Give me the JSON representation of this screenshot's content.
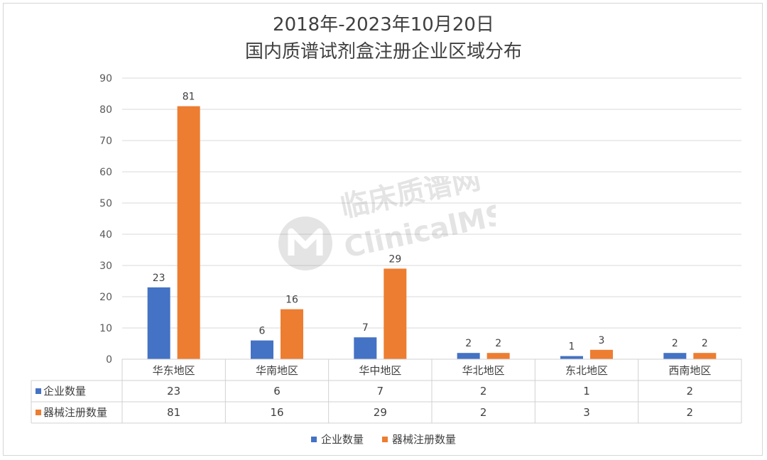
{
  "chart_data": {
    "type": "bar",
    "title_line1": "2018年-2023年10月20日",
    "title_line2": "国内质谱试剂盒注册企业区域分布",
    "categories": [
      "华东地区",
      "华南地区",
      "华中地区",
      "华北地区",
      "东北地区",
      "西南地区"
    ],
    "series": [
      {
        "name": "企业数量",
        "values": [
          23,
          6,
          7,
          2,
          1,
          2
        ],
        "color": "#4472C4"
      },
      {
        "name": "器械注册数量",
        "values": [
          81,
          16,
          29,
          2,
          3,
          2
        ],
        "color": "#ED7D31"
      }
    ],
    "ylim": [
      0,
      90
    ],
    "yticks": [
      0,
      10,
      20,
      30,
      40,
      50,
      60,
      70,
      80,
      90
    ],
    "grid": true,
    "legend_position": "bottom",
    "data_table": true
  },
  "watermark": {
    "line1": "临床质谱网",
    "line2": "ClinicalMS"
  }
}
